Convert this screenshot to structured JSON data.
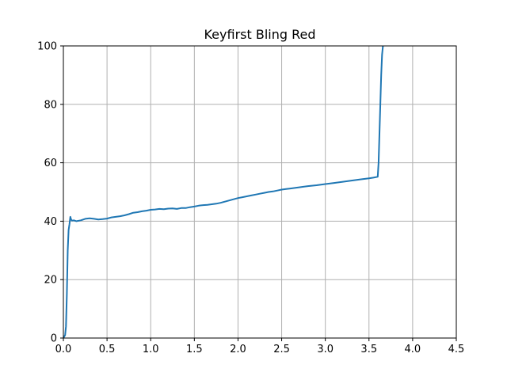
{
  "chart_data": {
    "type": "line",
    "title": "Keyfirst Bling Red",
    "xlabel": "",
    "ylabel": "",
    "xlim": [
      0,
      4.5
    ],
    "ylim": [
      0,
      100
    ],
    "xticks": [
      "0.0",
      "0.5",
      "1.0",
      "1.5",
      "2.0",
      "2.5",
      "3.0",
      "3.5",
      "4.0",
      "4.5"
    ],
    "yticks": [
      "0",
      "20",
      "40",
      "60",
      "80",
      "100"
    ],
    "grid": true,
    "line_color": "#1f77b4",
    "series": [
      {
        "x": [
          0.0,
          0.02,
          0.03,
          0.04,
          0.05,
          0.06,
          0.07,
          0.08,
          0.09,
          0.1,
          0.12,
          0.15,
          0.2,
          0.25,
          0.3,
          0.35,
          0.4,
          0.45,
          0.5,
          0.55,
          0.6,
          0.65,
          0.7,
          0.75,
          0.8,
          0.85,
          0.9,
          0.95,
          1.0,
          1.05,
          1.1,
          1.15,
          1.2,
          1.25,
          1.3,
          1.35,
          1.4,
          1.45,
          1.5,
          1.55,
          1.6,
          1.65,
          1.7,
          1.75,
          1.8,
          1.85,
          1.9,
          1.95,
          2.0,
          2.05,
          2.1,
          2.15,
          2.2,
          2.25,
          2.3,
          2.35,
          2.4,
          2.45,
          2.5,
          2.55,
          2.6,
          2.7,
          2.8,
          2.9,
          3.0,
          3.1,
          3.2,
          3.3,
          3.4,
          3.5,
          3.55,
          3.6,
          3.61,
          3.62,
          3.63,
          3.64,
          3.65,
          3.66
        ],
        "y": [
          0.0,
          1.0,
          4.0,
          15.0,
          30.0,
          37.0,
          39.0,
          41.5,
          40.5,
          40.2,
          40.3,
          40.0,
          40.3,
          40.8,
          41.0,
          40.8,
          40.6,
          40.7,
          40.9,
          41.3,
          41.5,
          41.7,
          42.0,
          42.4,
          42.9,
          43.1,
          43.4,
          43.6,
          43.9,
          44.0,
          44.2,
          44.1,
          44.3,
          44.4,
          44.2,
          44.5,
          44.5,
          44.8,
          45.0,
          45.3,
          45.5,
          45.6,
          45.8,
          46.0,
          46.3,
          46.7,
          47.1,
          47.5,
          47.9,
          48.2,
          48.5,
          48.8,
          49.1,
          49.4,
          49.7,
          50.0,
          50.2,
          50.5,
          50.8,
          51.0,
          51.2,
          51.6,
          52.0,
          52.3,
          52.7,
          53.1,
          53.5,
          53.9,
          54.3,
          54.7,
          54.9,
          55.2,
          60.0,
          70.0,
          80.0,
          90.0,
          97.0,
          100.0
        ]
      }
    ]
  }
}
